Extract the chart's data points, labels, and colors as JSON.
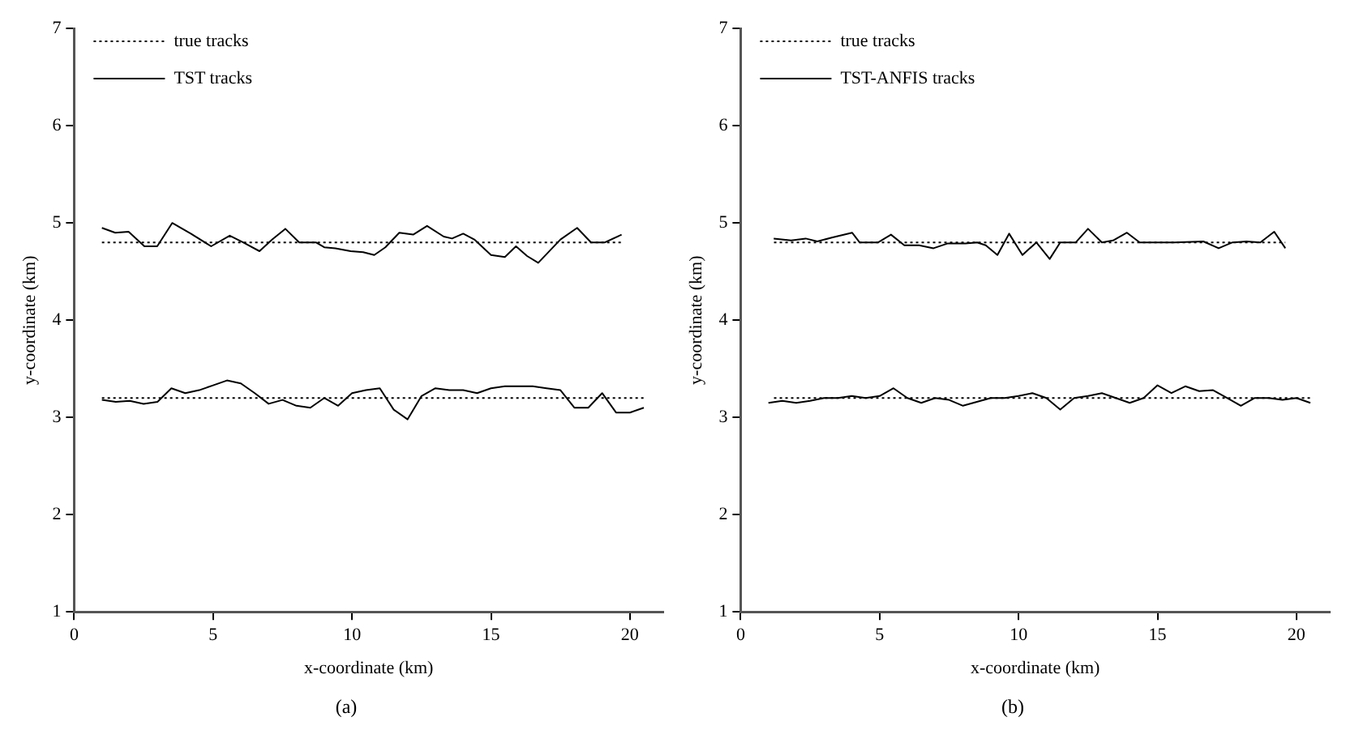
{
  "chart_data": [
    {
      "type": "line",
      "xlabel": "x-coordinate (km)",
      "ylabel": "y-coordinate (km)",
      "xlim": [
        0,
        21.2
      ],
      "ylim": [
        1,
        7
      ],
      "xticks": [
        0,
        5,
        10,
        15,
        20
      ],
      "yticks": [
        1,
        2,
        3,
        4,
        5,
        6,
        7
      ],
      "grid": false,
      "legend": "top left",
      "marker": "none",
      "annotations": [
        "(a)"
      ],
      "series": [
        {
          "name": "true tracks",
          "color": "#000000",
          "line_style": "dotted",
          "x": [
            1,
            19.7
          ],
          "values": [
            4.8,
            4.8
          ]
        },
        {
          "name": "TST tracks",
          "color": "#000000",
          "line_style": "solid",
          "x": [
            1.0,
            1.48,
            1.96,
            2.53,
            2.99,
            3.53,
            4.2,
            4.93,
            5.6,
            6.08,
            6.67,
            7.13,
            7.6,
            8.1,
            8.7,
            9.0,
            9.4,
            9.95,
            10.4,
            10.8,
            11.2,
            11.7,
            12.2,
            12.7,
            13.3,
            13.6,
            14.0,
            14.4,
            15.0,
            15.5,
            15.9,
            16.3,
            16.7,
            17.5,
            18.1,
            18.6,
            19.1,
            19.7
          ],
          "values": [
            4.95,
            4.9,
            4.91,
            4.76,
            4.76,
            5.0,
            4.89,
            4.76,
            4.87,
            4.8,
            4.71,
            4.83,
            4.94,
            4.8,
            4.8,
            4.75,
            4.74,
            4.71,
            4.7,
            4.67,
            4.75,
            4.9,
            4.88,
            4.97,
            4.86,
            4.84,
            4.89,
            4.83,
            4.67,
            4.65,
            4.76,
            4.66,
            4.59,
            4.83,
            4.95,
            4.8,
            4.8,
            4.88
          ]
        },
        {
          "color": "#000000",
          "line_style": "dotted",
          "x": [
            1,
            20.5
          ],
          "values": [
            3.2,
            3.2
          ]
        },
        {
          "color": "#000000",
          "line_style": "solid",
          "x": [
            1,
            1.5,
            2,
            2.5,
            3,
            3.5,
            4,
            4.5,
            5,
            5.5,
            6,
            6.5,
            7,
            7.5,
            8,
            8.5,
            9,
            9.5,
            10,
            10.5,
            11,
            11.5,
            12,
            12.5,
            13,
            13.5,
            14,
            14.5,
            15,
            15.5,
            16,
            16.5,
            17,
            17.5,
            18,
            18.5,
            19,
            19.5,
            20,
            20.5
          ],
          "values": [
            3.18,
            3.16,
            3.17,
            3.14,
            3.16,
            3.3,
            3.25,
            3.28,
            3.33,
            3.38,
            3.35,
            3.25,
            3.14,
            3.18,
            3.12,
            3.1,
            3.2,
            3.12,
            3.25,
            3.28,
            3.3,
            3.08,
            2.98,
            3.22,
            3.3,
            3.28,
            3.28,
            3.25,
            3.3,
            3.32,
            3.32,
            3.32,
            3.3,
            3.28,
            3.1,
            3.1,
            3.25,
            3.05,
            3.05,
            3.1
          ]
        }
      ]
    },
    {
      "type": "line",
      "xlabel": "x-coordinate (km)",
      "ylabel": "y-coordinate (km)",
      "xlim": [
        0,
        21.2
      ],
      "ylim": [
        1,
        7
      ],
      "xticks": [
        0,
        5,
        10,
        15,
        20
      ],
      "yticks": [
        1,
        2,
        3,
        4,
        5,
        6,
        7
      ],
      "grid": false,
      "legend": "top left",
      "marker": "none",
      "annotations": [
        "(b)"
      ],
      "series": [
        {
          "name": "true tracks",
          "color": "#000000",
          "line_style": "dotted",
          "x": [
            1.2,
            19.6
          ],
          "values": [
            4.8,
            4.8
          ]
        },
        {
          "name": "TST-ANFIS tracks",
          "color": "#000000",
          "line_style": "solid",
          "x": [
            1.19,
            1.82,
            2.34,
            2.76,
            3.28,
            4.01,
            4.28,
            4.95,
            5.41,
            5.89,
            6.42,
            6.94,
            7.46,
            8.09,
            8.51,
            8.82,
            9.24,
            9.66,
            10.14,
            10.64,
            11.12,
            11.5,
            12.06,
            12.5,
            13.0,
            13.4,
            13.9,
            14.36,
            14.98,
            15.6,
            16.65,
            17.2,
            17.7,
            18.2,
            18.7,
            19.2,
            19.6
          ],
          "values": [
            4.84,
            4.82,
            4.84,
            4.81,
            4.85,
            4.9,
            4.8,
            4.8,
            4.88,
            4.77,
            4.77,
            4.74,
            4.79,
            4.79,
            4.8,
            4.77,
            4.67,
            4.89,
            4.67,
            4.8,
            4.63,
            4.8,
            4.8,
            4.94,
            4.8,
            4.82,
            4.9,
            4.8,
            4.8,
            4.8,
            4.81,
            4.74,
            4.8,
            4.81,
            4.8,
            4.91,
            4.74
          ]
        },
        {
          "color": "#000000",
          "line_style": "dotted",
          "x": [
            1.2,
            20.5
          ],
          "values": [
            3.2,
            3.2
          ]
        },
        {
          "color": "#000000",
          "line_style": "solid",
          "x": [
            1,
            1.5,
            2,
            2.5,
            3,
            3.5,
            4,
            4.5,
            5,
            5.5,
            6,
            6.5,
            7,
            7.5,
            8,
            8.5,
            9,
            9.5,
            10,
            10.5,
            11,
            11.5,
            12,
            12.5,
            13,
            13.5,
            14,
            14.5,
            15,
            15.5,
            16,
            16.5,
            17,
            17.5,
            18,
            18.5,
            19,
            19.5,
            20,
            20.5
          ],
          "values": [
            3.15,
            3.17,
            3.15,
            3.17,
            3.2,
            3.2,
            3.22,
            3.2,
            3.22,
            3.3,
            3.2,
            3.15,
            3.2,
            3.18,
            3.12,
            3.16,
            3.2,
            3.2,
            3.22,
            3.25,
            3.2,
            3.08,
            3.2,
            3.22,
            3.25,
            3.2,
            3.15,
            3.2,
            3.33,
            3.25,
            3.32,
            3.27,
            3.28,
            3.2,
            3.12,
            3.2,
            3.2,
            3.18,
            3.2,
            3.15
          ]
        }
      ]
    }
  ]
}
